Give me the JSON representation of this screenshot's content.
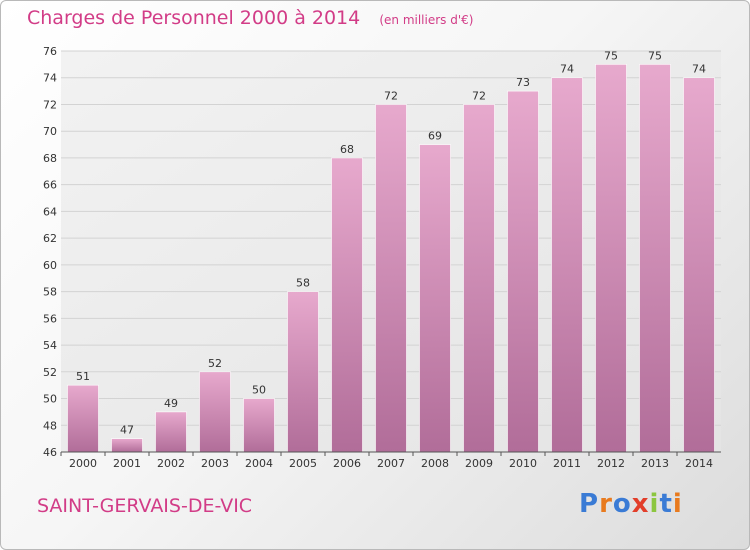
{
  "header": {
    "title": "Charges de Personnel 2000 à 2014",
    "subtitle": "(en milliers d'€)"
  },
  "footer": {
    "city": "SAINT-GERVAIS-DE-VIC",
    "logo_text": "Proxiti",
    "logo_letters": [
      {
        "char": "P",
        "color": "#3a7bd5"
      },
      {
        "char": "r",
        "color": "#e87a1e"
      },
      {
        "char": "o",
        "color": "#3a7bd5"
      },
      {
        "char": "x",
        "color": "#e23e2a"
      },
      {
        "char": "i",
        "color": "#8cc63f"
      },
      {
        "char": "t",
        "color": "#3a7bd5"
      },
      {
        "char": "i",
        "color": "#e87a1e"
      }
    ]
  },
  "colors": {
    "title": "#d23c87",
    "bar_top": "#e7a9cd",
    "bar_bottom": "#b16d99",
    "plot_background": "#efefef"
  },
  "chart_data": {
    "type": "bar",
    "title": "Charges de Personnel 2000 à 2014",
    "subtitle": "(en milliers d'€)",
    "categories": [
      "2000",
      "2001",
      "2002",
      "2003",
      "2004",
      "2005",
      "2006",
      "2007",
      "2008",
      "2009",
      "2010",
      "2011",
      "2012",
      "2013",
      "2014"
    ],
    "values": [
      51,
      47,
      49,
      52,
      50,
      58,
      68,
      72,
      69,
      72,
      73,
      74,
      75,
      75,
      74
    ],
    "ylim": [
      46,
      76
    ],
    "yticks": [
      46,
      48,
      50,
      52,
      54,
      56,
      58,
      60,
      62,
      64,
      66,
      68,
      70,
      72,
      74,
      76
    ],
    "grid": true,
    "legend": "none",
    "data_labels": true
  }
}
